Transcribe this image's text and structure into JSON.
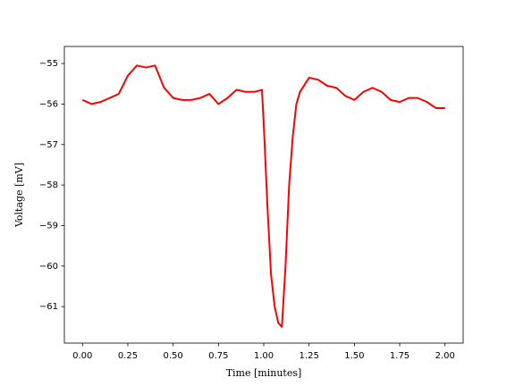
{
  "chart_data": {
    "type": "line",
    "xlabel": "Time [minutes]",
    "ylabel": "Voltage [mV]",
    "x": [
      0.0,
      0.05,
      0.1,
      0.15,
      0.2,
      0.25,
      0.3,
      0.35,
      0.4,
      0.45,
      0.5,
      0.55,
      0.6,
      0.65,
      0.7,
      0.75,
      0.8,
      0.85,
      0.9,
      0.95,
      0.99,
      1.0,
      1.02,
      1.04,
      1.06,
      1.08,
      1.1,
      1.12,
      1.14,
      1.16,
      1.18,
      1.2,
      1.25,
      1.3,
      1.35,
      1.4,
      1.45,
      1.5,
      1.55,
      1.6,
      1.65,
      1.7,
      1.75,
      1.8,
      1.85,
      1.9,
      1.95,
      2.0
    ],
    "series": [
      {
        "color": "#ff0000",
        "values": [
          -55.9,
          -56.0,
          -55.95,
          -55.85,
          -55.75,
          -55.3,
          -55.05,
          -55.1,
          -55.05,
          -55.6,
          -55.85,
          -55.9,
          -55.9,
          -55.85,
          -55.75,
          -56.0,
          -55.85,
          -55.65,
          -55.7,
          -55.7,
          -55.65,
          -56.5,
          -58.5,
          -60.2,
          -61.0,
          -61.4,
          -61.5,
          -60.0,
          -58.0,
          -56.8,
          -56.0,
          -55.7,
          -55.35,
          -55.4,
          -55.55,
          -55.6,
          -55.8,
          -55.9,
          -55.7,
          -55.6,
          -55.7,
          -55.9,
          -55.95,
          -55.85,
          -55.85,
          -55.95,
          -56.1,
          -56.1
        ]
      }
    ],
    "xlim": [
      -0.1,
      2.1
    ],
    "ylim": [
      -61.9,
      -54.58
    ],
    "xticks": [
      {
        "value": 0,
        "label": "0.00"
      },
      {
        "value": 0.25,
        "label": "0.25"
      },
      {
        "value": 0.5,
        "label": "0.50"
      },
      {
        "value": 0.75,
        "label": "0.75"
      },
      {
        "value": 1,
        "label": "1.00"
      },
      {
        "value": 1.25,
        "label": "1.25"
      },
      {
        "value": 1.5,
        "label": "1.50"
      },
      {
        "value": 1.75,
        "label": "1.75"
      },
      {
        "value": 2,
        "label": "2.00"
      }
    ],
    "yticks": [
      {
        "value": -55,
        "label": "−55"
      },
      {
        "value": -56,
        "label": "−56"
      },
      {
        "value": -57,
        "label": "−57"
      },
      {
        "value": -58,
        "label": "−58"
      },
      {
        "value": -59,
        "label": "−59"
      },
      {
        "value": -60,
        "label": "−60"
      },
      {
        "value": -61,
        "label": "−61"
      }
    ],
    "grid": false
  }
}
